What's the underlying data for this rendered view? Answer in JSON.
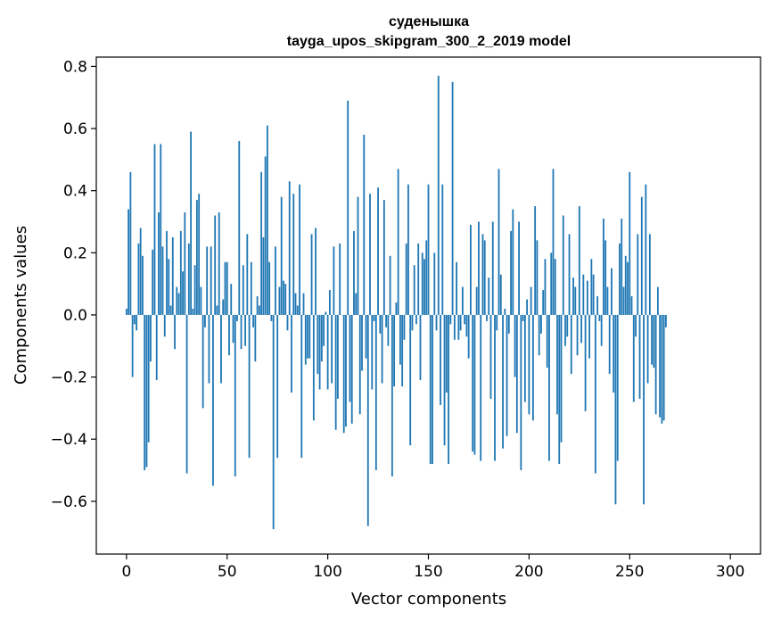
{
  "chart_data": {
    "type": "bar",
    "title_line1": "суденышка",
    "title_line2": "tayga_upos_skipgram_300_2_2019 model",
    "xlabel": "Vector components",
    "ylabel": "Components values",
    "xlim": [
      -15,
      315
    ],
    "ylim": [
      -0.77,
      0.83
    ],
    "xticks": [
      0,
      50,
      100,
      150,
      200,
      250,
      300
    ],
    "xtick_labels": [
      "0",
      "50",
      "100",
      "150",
      "200",
      "250",
      "300"
    ],
    "yticks": [
      -0.6,
      -0.4,
      -0.2,
      0.0,
      0.2,
      0.4,
      0.6,
      0.8
    ],
    "ytick_labels": [
      "−0.6",
      "−0.4",
      "−0.2",
      "0.0",
      "0.2",
      "0.4",
      "0.6",
      "0.8"
    ],
    "bar_color": "#1f77b4",
    "values": [
      0.02,
      0.34,
      0.46,
      -0.2,
      -0.03,
      -0.05,
      0.23,
      0.28,
      0.19,
      -0.5,
      -0.49,
      -0.41,
      -0.15,
      0.21,
      0.55,
      -0.21,
      0.33,
      0.55,
      0.22,
      -0.07,
      0.27,
      0.18,
      0.03,
      0.25,
      -0.11,
      0.09,
      0.07,
      0.27,
      0.14,
      0.33,
      -0.51,
      0.23,
      0.59,
      0.02,
      0.16,
      0.37,
      0.39,
      0.09,
      -0.3,
      -0.04,
      0.22,
      -0.22,
      0.22,
      -0.55,
      0.32,
      0.03,
      0.33,
      -0.22,
      0.05,
      0.17,
      0.17,
      -0.13,
      0.1,
      -0.09,
      -0.52,
      -0.02,
      0.56,
      -0.11,
      0.16,
      -0.1,
      0.26,
      -0.46,
      0.17,
      -0.04,
      -0.15,
      0.06,
      0.03,
      0.46,
      0.25,
      0.51,
      0.61,
      0.17,
      -0.02,
      -0.69,
      0.22,
      -0.46,
      0.09,
      0.38,
      0.11,
      0.1,
      -0.05,
      0.43,
      -0.25,
      0.39,
      0.07,
      0.03,
      0.42,
      -0.46,
      0.07,
      -0.16,
      -0.14,
      -0.14,
      0.26,
      -0.34,
      0.28,
      -0.19,
      -0.24,
      -0.15,
      -0.1,
      0.01,
      -0.24,
      0.08,
      -0.22,
      0.22,
      -0.37,
      -0.27,
      0.23,
      0.0,
      -0.38,
      -0.36,
      0.69,
      -0.28,
      -0.35,
      0.27,
      0.07,
      0.38,
      -0.32,
      -0.18,
      0.58,
      -0.14,
      -0.68,
      0.39,
      -0.24,
      -0.02,
      -0.5,
      0.41,
      -0.06,
      -0.22,
      0.37,
      -0.04,
      -0.1,
      0.19,
      -0.52,
      -0.23,
      0.04,
      0.47,
      -0.16,
      -0.23,
      -0.08,
      0.23,
      0.42,
      -0.42,
      -0.05,
      0.16,
      -0.03,
      0.23,
      -0.21,
      0.2,
      0.18,
      0.24,
      0.42,
      -0.48,
      -0.48,
      0.2,
      -0.05,
      0.77,
      -0.29,
      0.42,
      -0.42,
      -0.25,
      -0.48,
      -0.03,
      0.75,
      -0.08,
      0.17,
      -0.08,
      -0.05,
      0.09,
      -0.03,
      -0.07,
      -0.14,
      0.29,
      -0.44,
      -0.45,
      0.09,
      0.3,
      -0.47,
      0.26,
      0.24,
      -0.02,
      0.12,
      -0.27,
      0.3,
      -0.47,
      -0.05,
      0.47,
      0.13,
      -0.43,
      0.02,
      -0.39,
      -0.06,
      0.27,
      0.34,
      -0.2,
      -0.38,
      0.3,
      -0.5,
      -0.02,
      -0.28,
      0.05,
      -0.32,
      0.09,
      -0.34,
      0.35,
      0.24,
      -0.13,
      -0.06,
      0.08,
      0.18,
      -0.17,
      -0.47,
      0.2,
      0.47,
      0.18,
      -0.32,
      -0.48,
      -0.41,
      0.32,
      -0.1,
      -0.07,
      0.26,
      -0.19,
      0.12,
      0.09,
      -0.13,
      0.35,
      -0.09,
      0.13,
      -0.31,
      0.11,
      -0.14,
      0.18,
      0.13,
      -0.51,
      0.06,
      -0.02,
      -0.1,
      0.31,
      0.24,
      0.09,
      -0.19,
      0.15,
      -0.25,
      -0.61,
      -0.47,
      0.23,
      0.31,
      0.09,
      0.19,
      0.17,
      0.46,
      0.06,
      -0.28,
      -0.07,
      0.26,
      -0.27,
      0.38,
      -0.61,
      0.42,
      -0.22,
      0.26,
      -0.16,
      -0.17,
      -0.32,
      0.09,
      -0.33,
      -0.35,
      -0.34,
      -0.04
    ]
  }
}
